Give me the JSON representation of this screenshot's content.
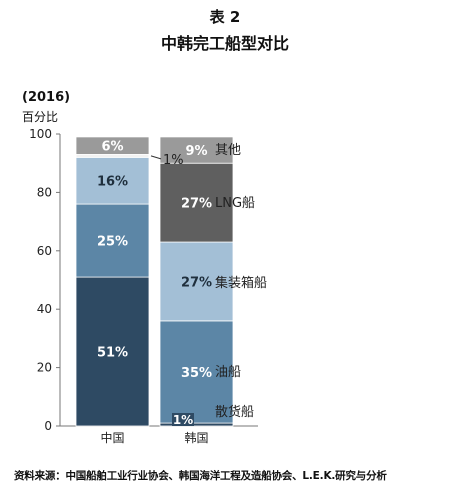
{
  "title": "表 2",
  "subtitle": "中韩完工船型对比",
  "year_label": "(2016)",
  "unit_label": "百分比",
  "source_note": "资料来源：中国船舶工业行业协会、韩国海洋工程及造船协会、L.E.K.研究与分析",
  "colors": {
    "散货船": "#2e4a63",
    "油船": "#5c86a6",
    "集装箱船": "#a3bfd6",
    "LNG船": "#5f5f5f",
    "其他": "#9a9a9a",
    "other_cn": "#f2f2f2"
  },
  "chart_data": {
    "type": "bar",
    "stacked": true,
    "categories": [
      "中国",
      "韩国"
    ],
    "ylim": [
      0,
      100
    ],
    "yticks": [
      0,
      20,
      40,
      60,
      80,
      100
    ],
    "series": [
      {
        "name": "散货船",
        "values": [
          51,
          1
        ],
        "labels": [
          "51%",
          "1%"
        ]
      },
      {
        "name": "油船",
        "values": [
          25,
          35
        ],
        "labels": [
          "25%",
          "35%"
        ]
      },
      {
        "name": "集装箱船",
        "values": [
          16,
          27
        ],
        "labels": [
          "16%",
          "27%"
        ]
      },
      {
        "name": "LNG船",
        "values": [
          1,
          27
        ],
        "labels": [
          "1%",
          "27%"
        ]
      },
      {
        "name": "其他",
        "values": [
          6,
          9
        ],
        "labels": [
          "6%",
          "9%"
        ]
      }
    ],
    "legend_labels": [
      "其他",
      "LNG船",
      "集装箱船",
      "油船",
      "散货船"
    ]
  }
}
